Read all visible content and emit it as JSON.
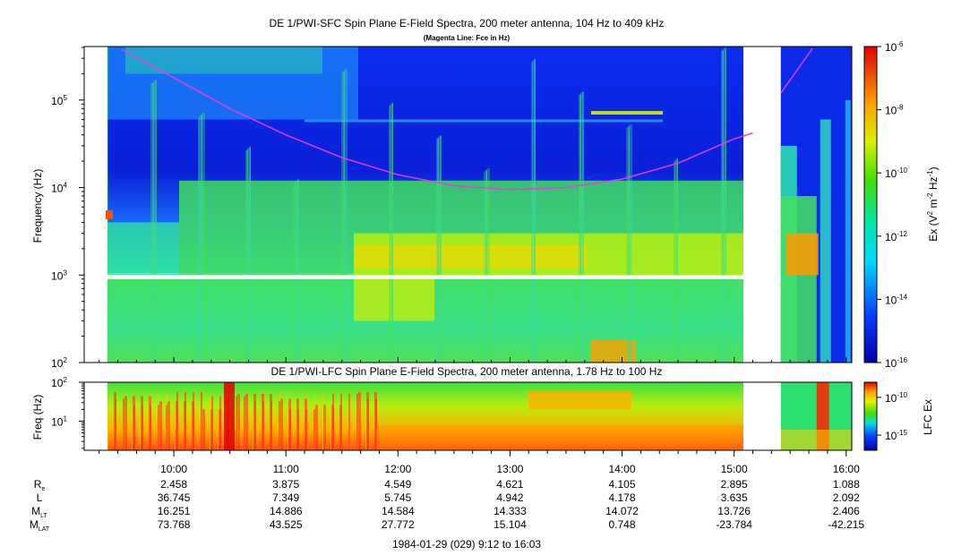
{
  "chart_data": [
    {
      "type": "heatmap",
      "title": "DE 1/PWI-SFC  Spin Plane E-Field Spectra, 200 meter antenna, 104 Hz to 409 kHz",
      "subtitle": "(Magenta Line: Fce in Hz)",
      "ylabel": "Frequency (Hz)",
      "yscale": "log",
      "ylim": [
        100,
        409000
      ],
      "y_ticks": [
        {
          "value": 100,
          "label": "10",
          "exp": "2"
        },
        {
          "value": 1000,
          "label": "10",
          "exp": "3"
        },
        {
          "value": 10000,
          "label": "10",
          "exp": "4"
        },
        {
          "value": 100000,
          "label": "10",
          "exp": "5"
        }
      ],
      "colorbar": {
        "label": "Ex (V",
        "label_exp1": "2",
        "label_mid": " m",
        "label_exp2": "-2",
        "label_mid2": " Hz",
        "label_exp3": "-1",
        "label_end": ")",
        "scale": "log",
        "range": [
          1e-16,
          1e-06
        ],
        "ticks": [
          {
            "value": 1e-06,
            "label": "10",
            "exp": "-6"
          },
          {
            "value": 1e-08,
            "label": "10",
            "exp": "-8"
          },
          {
            "value": 1e-10,
            "label": "10",
            "exp": "-10"
          },
          {
            "value": 1e-12,
            "label": "10",
            "exp": "-12"
          },
          {
            "value": 1e-14,
            "label": "10",
            "exp": "-14"
          },
          {
            "value": 1e-16,
            "label": "10",
            "exp": "-16"
          }
        ]
      },
      "data_gaps_time": [
        [
          "09:12",
          "09:23"
        ],
        [
          "15:11",
          "15:25"
        ]
      ],
      "data_gap_frequency_hz": [
        900,
        1000
      ],
      "fce_line": {
        "name": "Fce",
        "color": "#e040e0",
        "points": [
          {
            "t": "09:32",
            "f": 380000
          },
          {
            "t": "10:00",
            "f": 180000
          },
          {
            "t": "10:30",
            "f": 80000
          },
          {
            "t": "11:00",
            "f": 40000
          },
          {
            "t": "11:30",
            "f": 22000
          },
          {
            "t": "12:00",
            "f": 14000
          },
          {
            "t": "12:30",
            "f": 10500
          },
          {
            "t": "13:00",
            "f": 9500
          },
          {
            "t": "13:30",
            "f": 10000
          },
          {
            "t": "14:00",
            "f": 12500
          },
          {
            "t": "14:30",
            "f": 19000
          },
          {
            "t": "15:00",
            "f": 36000
          },
          {
            "t": "15:10",
            "f": 42000
          },
          {
            "t": "15:25",
            "f": 120000
          },
          {
            "t": "15:42",
            "f": 390000
          }
        ]
      }
    },
    {
      "type": "heatmap",
      "title": "DE 1/PWI-LFC  Spin Plane E-Field Spectra, 200 meter antenna, 1.78 Hz to 100 Hz",
      "ylabel": "Freq (Hz)",
      "yscale": "log",
      "ylim": [
        1.78,
        100
      ],
      "y_ticks": [
        {
          "value": 10,
          "label": "10",
          "exp": "1"
        },
        {
          "value": 100,
          "label": "10",
          "exp": "2"
        }
      ],
      "colorbar": {
        "label": "LFC Ex",
        "scale": "log",
        "ticks": [
          {
            "value": 1e-10,
            "label": "10",
            "exp": "-10"
          },
          {
            "value": 1e-15,
            "label": "10",
            "exp": "-15"
          }
        ]
      },
      "data_gaps_time": [
        [
          "09:12",
          "09:23"
        ],
        [
          "15:11",
          "15:25"
        ]
      ]
    }
  ],
  "time_axis": {
    "start": "09:12",
    "end": "16:03",
    "ticks": [
      "10:00",
      "11:00",
      "12:00",
      "13:00",
      "14:00",
      "15:00",
      "16:00"
    ]
  },
  "ephemeris": {
    "rows": [
      {
        "label": "R",
        "sub": "e",
        "values": [
          "2.458",
          "3.875",
          "4.549",
          "4.621",
          "4.105",
          "2.895",
          "1.088"
        ]
      },
      {
        "label": "L",
        "sub": "",
        "values": [
          "36.745",
          "7.349",
          "5.745",
          "4.942",
          "4.178",
          "3.635",
          "2.092"
        ]
      },
      {
        "label": "M",
        "sub": "LT",
        "values": [
          "16.251",
          "14.886",
          "14.584",
          "14.333",
          "14.072",
          "13.726",
          "2.406"
        ]
      },
      {
        "label": "M",
        "sub": "LAT",
        "values": [
          "73.768",
          "43.525",
          "27.772",
          "15.104",
          "0.748",
          "-23.784",
          "-42.215"
        ]
      }
    ]
  },
  "footer": "1984-01-29 (029) 9:12 to 16:03"
}
